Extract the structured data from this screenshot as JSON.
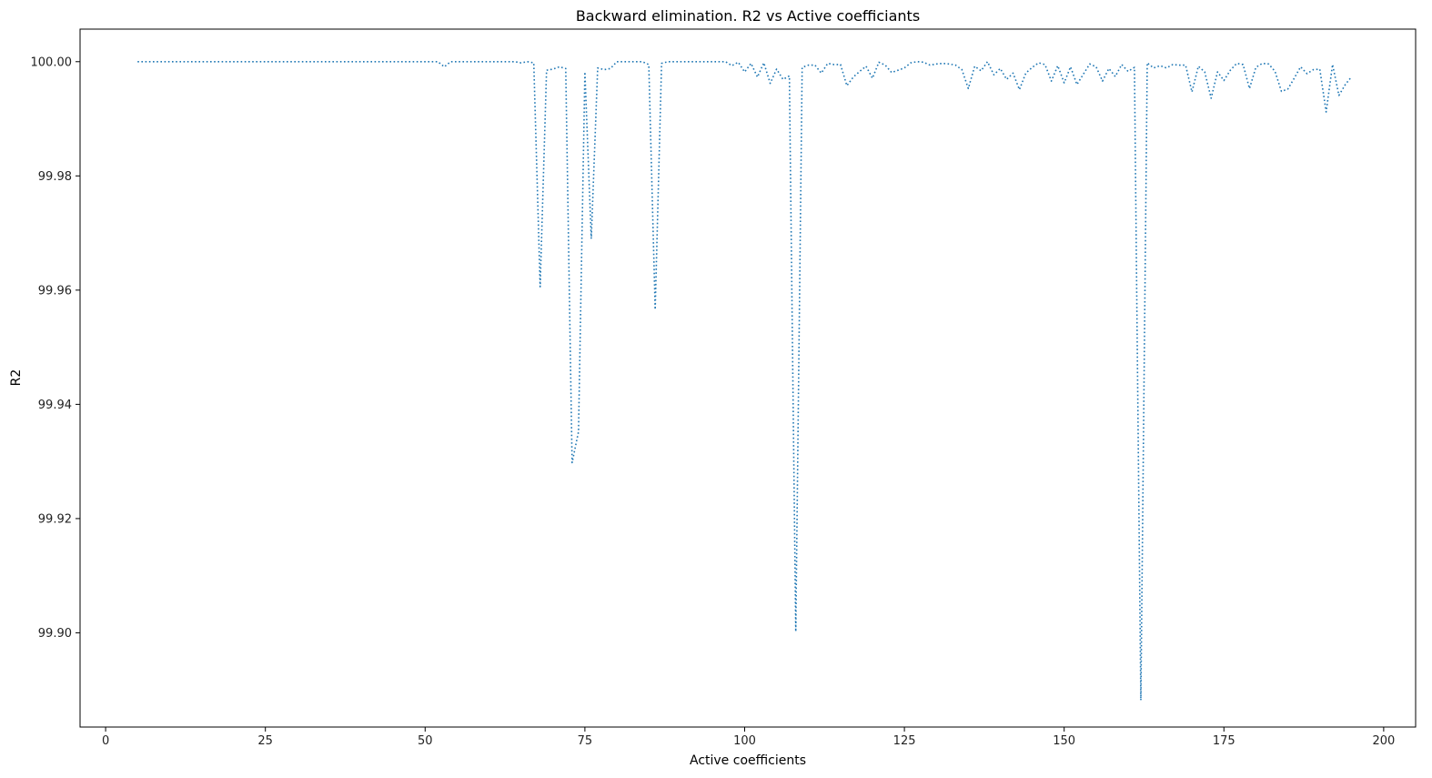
{
  "chart_data": {
    "type": "line",
    "title": "Backward elimination. R2 vs Active coefficiants",
    "xlabel": "Active coefficients",
    "ylabel": "R2",
    "xlim": [
      -4,
      205
    ],
    "ylim": [
      99.8835,
      100.0057
    ],
    "x_ticks": [
      0,
      25,
      50,
      75,
      100,
      125,
      150,
      175,
      200
    ],
    "y_ticks": [
      99.9,
      99.92,
      99.94,
      99.96,
      99.98,
      100.0
    ],
    "y_tick_labels": [
      "99.90",
      "99.92",
      "99.94",
      "99.96",
      "99.98",
      "100.00"
    ],
    "grid": false,
    "line_style": "dotted",
    "series": [
      {
        "color": "#1f77b4",
        "x": [
          5,
          10,
          20,
          30,
          40,
          50,
          52,
          53,
          54,
          55,
          60,
          64,
          65,
          66,
          67,
          68,
          69,
          70,
          71,
          72,
          73,
          74,
          75,
          76,
          77,
          78,
          79,
          80,
          81,
          82,
          83,
          84,
          85,
          86,
          87,
          88,
          90,
          95,
          97,
          98,
          99,
          100,
          101,
          102,
          103,
          104,
          105,
          106,
          107,
          108,
          109,
          110,
          111,
          112,
          113,
          114,
          115,
          116,
          117,
          118,
          119,
          120,
          121,
          122,
          123,
          124,
          125,
          126,
          127,
          128,
          129,
          130,
          131,
          132,
          133,
          134,
          135,
          136,
          137,
          138,
          139,
          140,
          141,
          142,
          143,
          144,
          145,
          146,
          147,
          148,
          149,
          150,
          151,
          152,
          153,
          154,
          155,
          156,
          157,
          158,
          159,
          160,
          161,
          162,
          163,
          164,
          165,
          166,
          167,
          168,
          169,
          170,
          171,
          172,
          173,
          174,
          175,
          176,
          177,
          178,
          179,
          180,
          181,
          182,
          183,
          184,
          185,
          186,
          187,
          188,
          189,
          190,
          191,
          192,
          193,
          194,
          195
        ],
        "values": [
          100.0,
          100.0,
          100.0,
          100.0,
          100.0,
          100.0,
          100.0,
          99.9991,
          100.0,
          100.0,
          100.0,
          100.0,
          99.9998,
          100.0,
          99.9998,
          99.9606,
          99.9985,
          99.9987,
          99.9991,
          99.9988,
          99.9298,
          99.9352,
          99.9982,
          99.969,
          99.9989,
          99.9986,
          99.9988,
          100.0,
          100.0,
          100.0,
          100.0,
          100.0,
          99.9995,
          99.9566,
          99.9997,
          100.0,
          100.0,
          100.0,
          100.0,
          99.9993,
          99.9999,
          99.9982,
          99.9997,
          99.9973,
          99.9998,
          99.9962,
          99.9987,
          99.9969,
          99.9975,
          99.9002,
          99.999,
          99.9994,
          99.9994,
          99.998,
          99.9997,
          99.9995,
          99.9995,
          99.9958,
          99.9973,
          99.9983,
          99.9992,
          99.9971,
          99.9999,
          99.9994,
          99.9981,
          99.9985,
          99.9989,
          99.9998,
          100.0,
          99.9999,
          99.9994,
          99.9996,
          99.9997,
          99.9996,
          99.9994,
          99.9986,
          99.9953,
          99.9992,
          99.9984,
          100.0,
          99.9977,
          99.9988,
          99.9969,
          99.998,
          99.9951,
          99.998,
          99.999,
          99.9998,
          99.9995,
          99.9966,
          99.9993,
          99.9963,
          99.9991,
          99.996,
          99.9978,
          99.9996,
          99.9991,
          99.9966,
          99.9988,
          99.9974,
          99.9995,
          99.9983,
          99.999,
          99.8882,
          99.9998,
          99.9989,
          99.9993,
          99.9989,
          99.9995,
          99.9994,
          99.9994,
          99.9947,
          99.9992,
          99.9982,
          99.9936,
          99.9982,
          99.9967,
          99.9985,
          99.9997,
          99.9995,
          99.9953,
          99.999,
          99.9997,
          99.9996,
          99.9983,
          99.9948,
          99.9952,
          99.9971,
          99.9991,
          99.9979,
          99.9986,
          99.9987,
          99.9912,
          99.9995,
          99.9941,
          99.996,
          99.9974
        ]
      }
    ]
  }
}
